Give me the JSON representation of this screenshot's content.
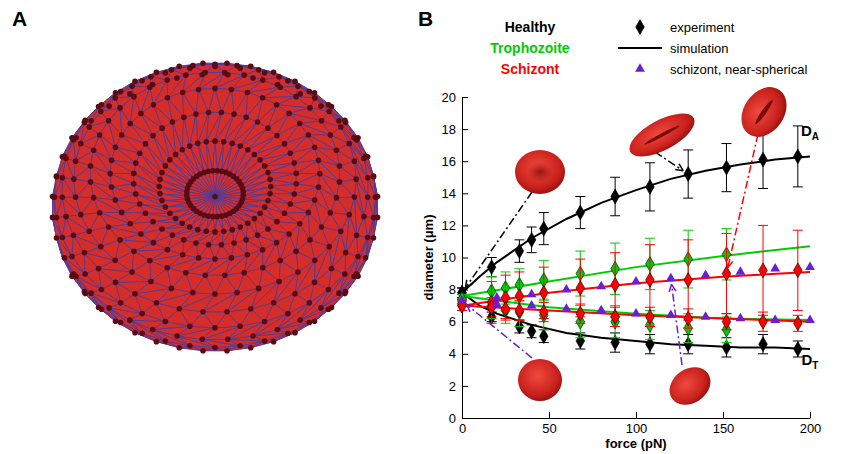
{
  "panel_labels": [
    "A",
    "B"
  ],
  "chart_data": {
    "type": "scatter",
    "x_label": "force (pN)",
    "y_label": "diameter (μm)",
    "xlim": [
      0,
      200
    ],
    "xticks": [
      0,
      50,
      100,
      150,
      200
    ],
    "ylim": [
      0,
      20
    ],
    "yticks": [
      0,
      2,
      4,
      6,
      8,
      10,
      12,
      14,
      16,
      18,
      20
    ],
    "grid": false,
    "legend": "top",
    "legend_entries": [
      {
        "text": "Healthy",
        "color": "#000000"
      },
      {
        "text": "Trophozoite",
        "color": "#00cc00"
      },
      {
        "text": "Schizont",
        "color": "#ff0000"
      },
      {
        "text": "experiment",
        "marker": "diamond",
        "color": "#000000"
      },
      {
        "text": "simulation",
        "line_style": "solid",
        "color": "#000000"
      },
      {
        "text": "schizont, near-spherical",
        "marker": "triangle",
        "color": "#6a1fd0"
      }
    ],
    "annotations": [
      {
        "text": "D",
        "subscript": "A",
        "x": 200,
        "y": 17.6
      },
      {
        "text": "D",
        "subscript": "T",
        "x": 200,
        "y": 3.3
      }
    ],
    "series": [
      {
        "type": "scatter",
        "marker": "diamond",
        "color": "#000000",
        "x": [
          0,
          17,
          33,
          40,
          47,
          68,
          88,
          108,
          130,
          152,
          173,
          193
        ],
        "values": [
          7.8,
          9.4,
          10.4,
          11.1,
          11.8,
          12.8,
          13.8,
          14.4,
          15.2,
          15.6,
          16.1,
          16.3
        ],
        "errors": [
          0.3,
          0.6,
          0.7,
          0.8,
          1.0,
          1.0,
          1.2,
          1.5,
          1.5,
          1.5,
          1.8,
          1.9
        ]
      },
      {
        "type": "scatter",
        "marker": "diamond",
        "color": "#000000",
        "x": [
          0,
          17,
          33,
          40,
          47,
          68,
          88,
          108,
          130,
          152,
          173,
          193
        ],
        "values": [
          7.8,
          6.3,
          5.7,
          5.4,
          5.1,
          4.8,
          4.7,
          4.6,
          4.6,
          4.4,
          4.6,
          4.3
        ],
        "errors": [
          0.3,
          0.3,
          0.4,
          0.4,
          0.4,
          0.5,
          0.6,
          0.6,
          0.6,
          0.6,
          0.6,
          0.5
        ]
      },
      {
        "type": "line",
        "line_style": "solid",
        "color": "#000000",
        "x": [
          0,
          10,
          20,
          40,
          60,
          80,
          100,
          120,
          140,
          160,
          180,
          200
        ],
        "values": [
          7.8,
          8.8,
          9.7,
          11.2,
          12.4,
          13.4,
          14.2,
          14.9,
          15.4,
          15.8,
          16.1,
          16.3
        ]
      },
      {
        "type": "line",
        "line_style": "solid",
        "color": "#000000",
        "x": [
          0,
          10,
          20,
          40,
          60,
          80,
          100,
          120,
          140,
          160,
          180,
          200
        ],
        "values": [
          7.8,
          7.0,
          6.5,
          5.8,
          5.3,
          5.0,
          4.8,
          4.6,
          4.5,
          4.4,
          4.4,
          4.3
        ]
      },
      {
        "type": "scatter",
        "marker": "diamond",
        "color": "#00cc00",
        "x": [
          0,
          17,
          25,
          33,
          47,
          68,
          88,
          108,
          130,
          152
        ],
        "values": [
          7.4,
          7.9,
          8.1,
          8.3,
          8.6,
          9.0,
          9.3,
          9.6,
          9.9,
          10.2
        ],
        "errors": [
          0.3,
          0.9,
          1.0,
          1.0,
          1.2,
          1.4,
          1.6,
          1.6,
          1.8,
          1.6
        ]
      },
      {
        "type": "scatter",
        "marker": "diamond",
        "color": "#00cc00",
        "x": [
          0,
          17,
          25,
          33,
          47,
          68,
          88,
          108,
          130,
          152
        ],
        "values": [
          7.4,
          7.0,
          6.7,
          6.6,
          6.4,
          6.0,
          6.0,
          5.8,
          5.6,
          5.5
        ],
        "errors": [
          0.3,
          0.8,
          0.8,
          0.9,
          0.9,
          1.0,
          1.0,
          0.9,
          0.9,
          0.8
        ]
      },
      {
        "type": "line",
        "line_style": "solid",
        "color": "#00cc00",
        "x": [
          0,
          50,
          100,
          150,
          200
        ],
        "values": [
          7.6,
          8.5,
          9.4,
          10.1,
          10.7
        ]
      },
      {
        "type": "line",
        "line_style": "solid",
        "color": "#00cc00",
        "x": [
          0,
          50,
          100,
          150,
          200
        ],
        "values": [
          7.6,
          6.9,
          6.5,
          6.2,
          6.1
        ]
      },
      {
        "type": "scatter",
        "marker": "diamond",
        "color": "#ff0000",
        "x": [
          0,
          17,
          25,
          33,
          47,
          68,
          88,
          108,
          130,
          152,
          173,
          193
        ],
        "values": [
          7.0,
          7.2,
          7.5,
          7.6,
          7.8,
          8.1,
          8.3,
          8.6,
          8.6,
          9.0,
          9.2,
          9.2
        ],
        "errors": [
          0.3,
          1.3,
          1.4,
          1.5,
          1.6,
          1.8,
          2.0,
          2.2,
          2.5,
          2.5,
          2.8,
          2.5
        ]
      },
      {
        "type": "scatter",
        "marker": "diamond",
        "color": "#ff0000",
        "x": [
          0,
          17,
          25,
          33,
          47,
          68,
          88,
          108,
          130,
          152,
          173,
          193
        ],
        "values": [
          7.0,
          6.9,
          6.8,
          6.7,
          6.6,
          6.5,
          6.3,
          6.3,
          6.2,
          6.0,
          6.0,
          5.9
        ],
        "errors": [
          0.3,
          0.6,
          0.6,
          0.6,
          0.6,
          0.6,
          0.6,
          0.6,
          0.6,
          0.5,
          0.6,
          0.5
        ]
      },
      {
        "type": "line",
        "line_style": "solid",
        "color": "#ff0000",
        "x": [
          0,
          50,
          100,
          150,
          200
        ],
        "values": [
          7.0,
          7.8,
          8.4,
          8.8,
          9.1
        ]
      },
      {
        "type": "line",
        "line_style": "solid",
        "color": "#ff0000",
        "x": [
          0,
          50,
          100,
          150,
          200
        ],
        "values": [
          7.0,
          6.7,
          6.4,
          6.2,
          6.0
        ]
      },
      {
        "type": "scatter",
        "marker": "triangle",
        "color": "#6a1fd0",
        "x": [
          0,
          20,
          40,
          60,
          80,
          100,
          120,
          140,
          160,
          180,
          200
        ],
        "values": [
          7.3,
          7.5,
          7.7,
          8.0,
          8.2,
          8.5,
          8.7,
          8.9,
          9.1,
          9.3,
          9.4
        ]
      },
      {
        "type": "scatter",
        "marker": "triangle",
        "color": "#6a1fd0",
        "x": [
          0,
          20,
          40,
          60,
          80,
          100,
          120,
          140,
          160,
          180,
          200
        ],
        "values": [
          7.3,
          7.1,
          7.0,
          6.8,
          6.7,
          6.5,
          6.4,
          6.3,
          6.2,
          6.1,
          6.1
        ]
      }
    ]
  }
}
